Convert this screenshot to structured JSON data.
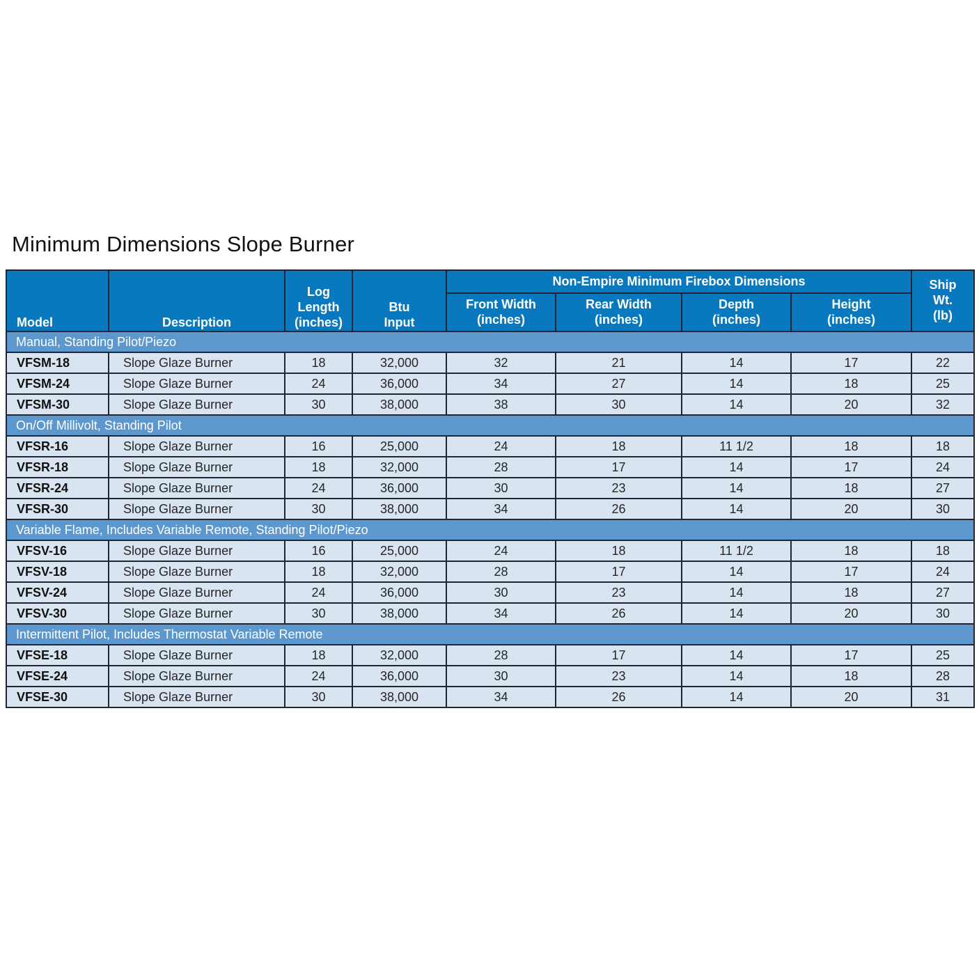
{
  "page": {
    "title": "Minimum Dimensions Slope Burner"
  },
  "colors": {
    "header_bg": "#0879BF",
    "section_bg": "#5C98CE",
    "row_bg": "#D9E4F1",
    "border": "#1F2533",
    "header_text": "#FFFFFF",
    "cell_text": "#262626"
  },
  "table": {
    "group_header": "Non-Empire Minimum Firebox Dimensions",
    "columns": [
      {
        "key": "model",
        "label": "Model"
      },
      {
        "key": "description",
        "label": "Description"
      },
      {
        "key": "log_length",
        "label": "Log\nLength\n(inches)"
      },
      {
        "key": "btu_input",
        "label": "Btu\nInput"
      },
      {
        "key": "front_width",
        "label": "Front Width\n(inches)"
      },
      {
        "key": "rear_width",
        "label": "Rear Width\n(inches)"
      },
      {
        "key": "depth",
        "label": "Depth\n(inches)"
      },
      {
        "key": "height",
        "label": "Height\n(inches)"
      },
      {
        "key": "ship_wt",
        "label": "Ship\nWt.\n(lb)"
      }
    ],
    "sections": [
      {
        "label": "Manual, Standing Pilot/Piezo",
        "rows": [
          [
            "VFSM-18",
            "Slope Glaze Burner",
            "18",
            "32,000",
            "32",
            "21",
            "14",
            "17",
            "22"
          ],
          [
            "VFSM-24",
            "Slope Glaze Burner",
            "24",
            "36,000",
            "34",
            "27",
            "14",
            "18",
            "25"
          ],
          [
            "VFSM-30",
            "Slope Glaze Burner",
            "30",
            "38,000",
            "38",
            "30",
            "14",
            "20",
            "32"
          ]
        ]
      },
      {
        "label": "On/Off Millivolt, Standing Pilot",
        "rows": [
          [
            "VFSR-16",
            "Slope Glaze Burner",
            "16",
            "25,000",
            "24",
            "18",
            "11 1/2",
            "18",
            "18"
          ],
          [
            "VFSR-18",
            "Slope Glaze Burner",
            "18",
            "32,000",
            "28",
            "17",
            "14",
            "17",
            "24"
          ],
          [
            "VFSR-24",
            "Slope Glaze Burner",
            "24",
            "36,000",
            "30",
            "23",
            "14",
            "18",
            "27"
          ],
          [
            "VFSR-30",
            "Slope Glaze Burner",
            "30",
            "38,000",
            "34",
            "26",
            "14",
            "20",
            "30"
          ]
        ]
      },
      {
        "label": "Variable Flame, Includes Variable Remote, Standing Pilot/Piezo",
        "rows": [
          [
            "VFSV-16",
            "Slope Glaze Burner",
            "16",
            "25,000",
            "24",
            "18",
            "11 1/2",
            "18",
            "18"
          ],
          [
            "VFSV-18",
            "Slope Glaze Burner",
            "18",
            "32,000",
            "28",
            "17",
            "14",
            "17",
            "24"
          ],
          [
            "VFSV-24",
            "Slope Glaze Burner",
            "24",
            "36,000",
            "30",
            "23",
            "14",
            "18",
            "27"
          ],
          [
            "VFSV-30",
            "Slope Glaze Burner",
            "30",
            "38,000",
            "34",
            "26",
            "14",
            "20",
            "30"
          ]
        ]
      },
      {
        "label": "Intermittent Pilot, Includes Thermostat Variable Remote",
        "rows": [
          [
            "VFSE-18",
            "Slope Glaze Burner",
            "18",
            "32,000",
            "28",
            "17",
            "14",
            "17",
            "25"
          ],
          [
            "VFSE-24",
            "Slope Glaze Burner",
            "24",
            "36,000",
            "30",
            "23",
            "14",
            "18",
            "28"
          ],
          [
            "VFSE-30",
            "Slope Glaze Burner",
            "30",
            "38,000",
            "34",
            "26",
            "14",
            "20",
            "31"
          ]
        ]
      }
    ]
  }
}
